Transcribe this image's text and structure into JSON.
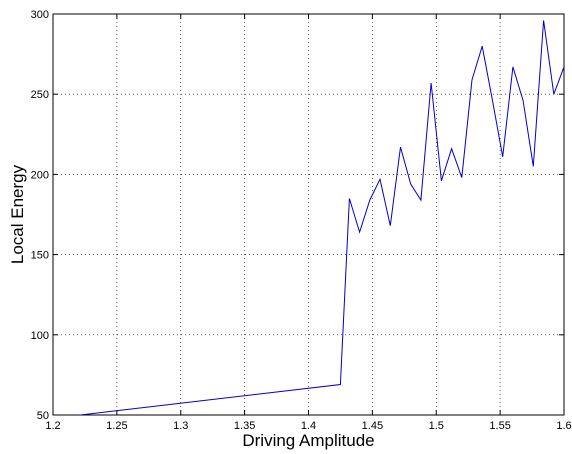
{
  "chart_data": {
    "type": "line",
    "title": "",
    "xlabel": "Driving Amplitude",
    "ylabel": "Local Energy",
    "xlim": [
      1.2,
      1.6
    ],
    "ylim": [
      50,
      300
    ],
    "xticks": [
      1.2,
      1.25,
      1.3,
      1.35,
      1.4,
      1.45,
      1.5,
      1.55,
      1.6
    ],
    "xtick_labels": [
      "1.2",
      "1.25",
      "1.3",
      "1.35",
      "1.4",
      "1.45",
      "1.5",
      "1.55",
      "1.6"
    ],
    "yticks": [
      50,
      100,
      150,
      200,
      250,
      300
    ],
    "ytick_labels": [
      "50",
      "100",
      "150",
      "200",
      "250",
      "300"
    ],
    "grid": true,
    "line_color": "#0000cc",
    "series": [
      {
        "x": [
          1.2,
          1.425,
          1.432,
          1.44,
          1.448,
          1.456,
          1.464,
          1.472,
          1.48,
          1.488,
          1.496,
          1.504,
          1.512,
          1.52,
          1.528,
          1.536,
          1.544,
          1.552,
          1.56,
          1.568,
          1.576,
          1.584,
          1.592,
          1.6
        ],
        "y": [
          48,
          69,
          185,
          164,
          184,
          197,
          168,
          217,
          194,
          184,
          257,
          196,
          216,
          198,
          259,
          280,
          246,
          211,
          267,
          246,
          205,
          296,
          250,
          267
        ]
      }
    ]
  }
}
